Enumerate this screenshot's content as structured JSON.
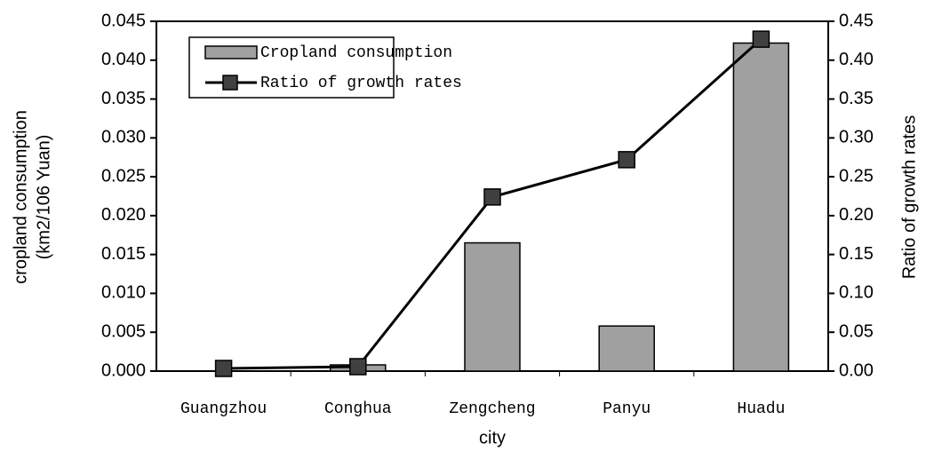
{
  "chart_data": {
    "type": "bar",
    "xlabel": "city",
    "ylabel": [
      "cropland consumption",
      "(km2/106 Yuan)"
    ],
    "y2label": "Ratio of growth rates",
    "categories": [
      "Guangzhou",
      "Conghua",
      "Zengcheng",
      "Panyu",
      "Huadu"
    ],
    "series": [
      {
        "name": "Cropland consumption",
        "type": "bar",
        "color": "#a0a0a0",
        "values": [
          0,
          0.0008,
          0.0165,
          0.0058,
          0.0422
        ]
      },
      {
        "name": "Ratio of growth rates",
        "type": "line",
        "color": "#000000",
        "marker_color": "#404040",
        "axis": "y2",
        "values": [
          0.0034,
          0.0057,
          0.224,
          0.272,
          0.427
        ]
      }
    ],
    "ylim": [
      0,
      0.045
    ],
    "yticks": [
      {
        "value": 0,
        "label": "0.000"
      },
      {
        "value": 0.005,
        "label": "0.005"
      },
      {
        "value": 0.01,
        "label": "0.010"
      },
      {
        "value": 0.015,
        "label": "0.015"
      },
      {
        "value": 0.02,
        "label": "0.020"
      },
      {
        "value": 0.025,
        "label": "0.025"
      },
      {
        "value": 0.03,
        "label": "0.030"
      },
      {
        "value": 0.035,
        "label": "0.035"
      },
      {
        "value": 0.04,
        "label": "0.040"
      },
      {
        "value": 0.045,
        "label": "0.045"
      }
    ],
    "y2lim": [
      0,
      0.45
    ],
    "y2ticks": [
      {
        "value": 0,
        "label": "0.00"
      },
      {
        "value": 0.05,
        "label": "0.05"
      },
      {
        "value": 0.1,
        "label": "0.10"
      },
      {
        "value": 0.15,
        "label": "0.15"
      },
      {
        "value": 0.2,
        "label": "0.20"
      },
      {
        "value": 0.25,
        "label": "0.25"
      },
      {
        "value": 0.3,
        "label": "0.30"
      },
      {
        "value": 0.35,
        "label": "0.35"
      },
      {
        "value": 0.4,
        "label": "0.40"
      },
      {
        "value": 0.45,
        "label": "0.45"
      }
    ],
    "grid": false,
    "legend": "upper left"
  }
}
